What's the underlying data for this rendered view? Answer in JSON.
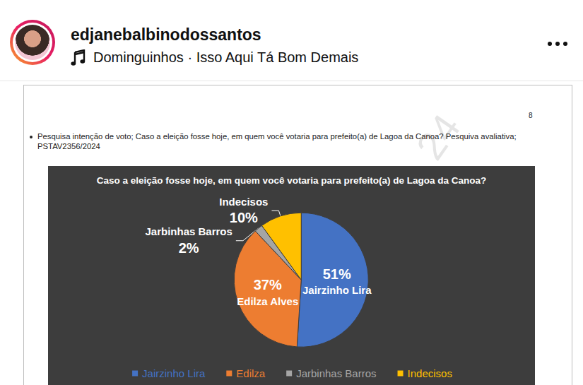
{
  "header": {
    "username": "edjanebalbinodossantos",
    "audio": "Dominguinhos · Isso Aqui Tá Bom Demais"
  },
  "document": {
    "page_number": 8,
    "watermark": "24",
    "bullet": "Pesquisa intenção de voto; Caso a eleição fosse hoje, em quem você votaria para prefeito(a) de Lagoa da Canoa? Pesquiva avaliativa; PSTAV2356/2024"
  },
  "chart_data": {
    "type": "pie",
    "title": "Caso a eleição fosse hoje, em quem você votaria para prefeito(a) de Lagoa da Canoa?",
    "categories": [
      "Jairzinho Lira",
      "Edilza Alves",
      "Jarbinhas Barros",
      "Indecisos"
    ],
    "values": [
      51,
      37,
      2,
      10
    ],
    "value_labels": [
      "51%",
      "37%",
      "2%",
      "10%"
    ],
    "legend_labels": [
      "Jairzinho Lira",
      "Edilza",
      "Jarbinhas Barros",
      "Indecisos"
    ],
    "colors": [
      "#4472c4",
      "#ed7d31",
      "#a5a5a5",
      "#ffc000"
    ],
    "data_labels": true,
    "legend": "bottom"
  }
}
